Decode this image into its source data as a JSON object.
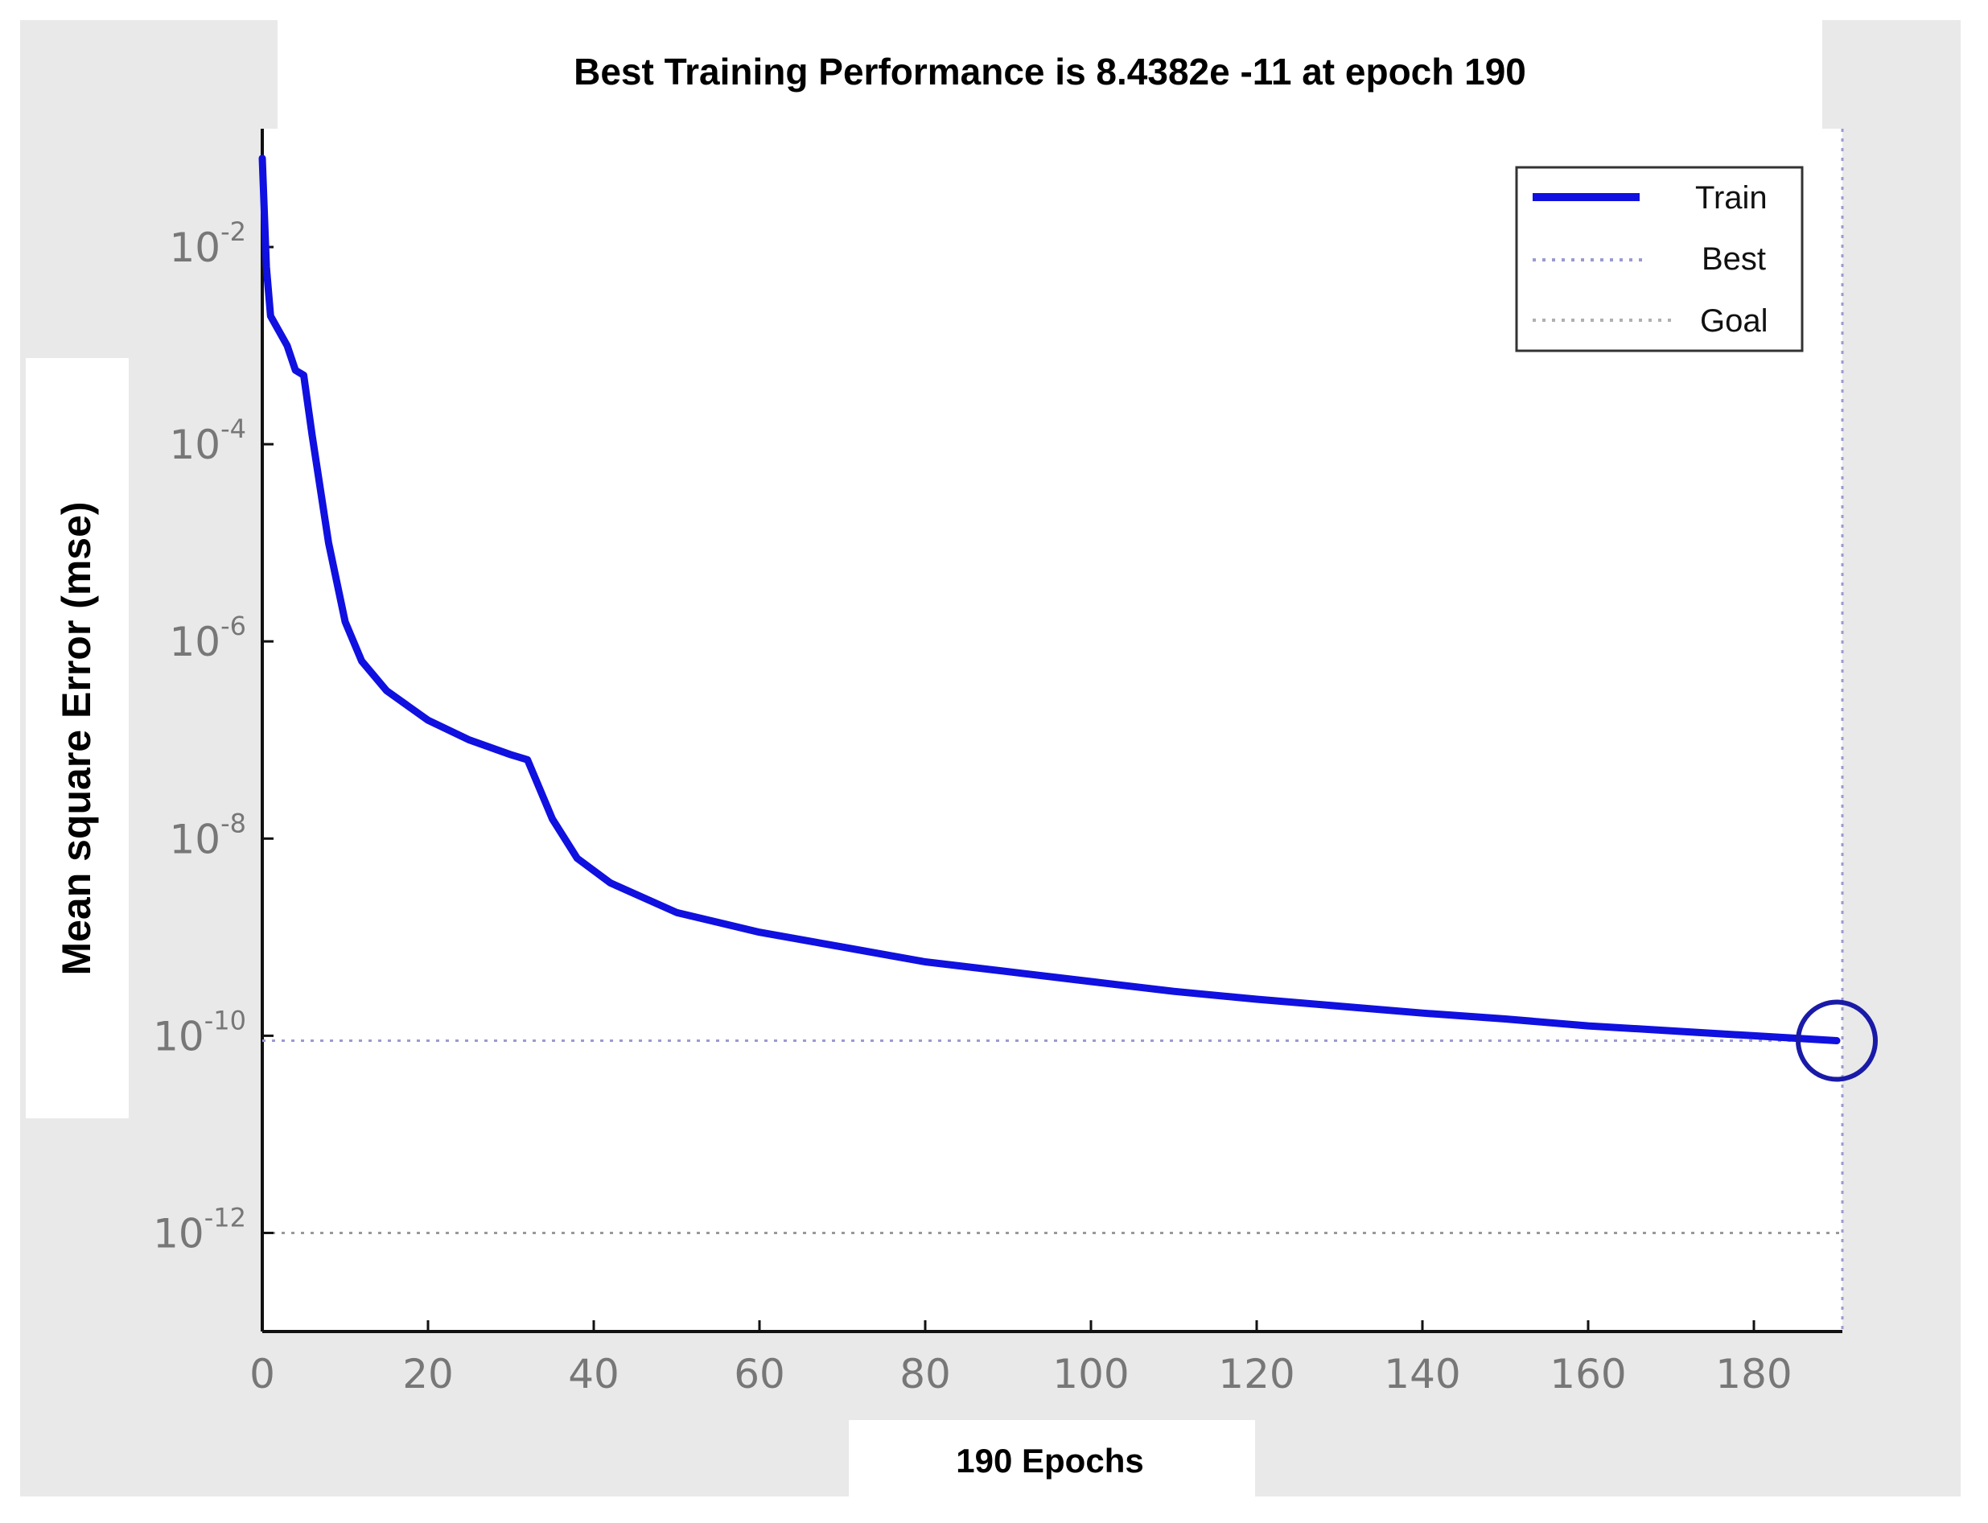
{
  "chart_data": {
    "type": "line",
    "title": "Best Training Performance is 8.4382e -11 at epoch 190",
    "xlabel": "190 Epochs",
    "ylabel": "Mean square Error (mse)",
    "xlim": [
      0,
      190
    ],
    "ylim_log10": [
      -13,
      -1
    ],
    "yscale": "log",
    "x_ticks": [
      0,
      20,
      40,
      60,
      80,
      100,
      120,
      140,
      160,
      180
    ],
    "x_tick_labels": [
      "0",
      "20",
      "40",
      "60",
      "80",
      "100",
      "120",
      "140",
      "160",
      "180"
    ],
    "y_ticks_log10": [
      -2,
      -4,
      -6,
      -8,
      -10,
      -12
    ],
    "y_tick_labels": [
      {
        "base": "10",
        "exp": "-2"
      },
      {
        "base": "10",
        "exp": "-4"
      },
      {
        "base": "10",
        "exp": "-6"
      },
      {
        "base": "10",
        "exp": "-8"
      },
      {
        "base": "10",
        "exp": "-10"
      },
      {
        "base": "10",
        "exp": "-12"
      }
    ],
    "legend": {
      "position": "top-right",
      "entries": [
        {
          "label": "Train",
          "style": "solid",
          "color": "#1010e0"
        },
        {
          "label": "Best",
          "style": "dotted",
          "color": "#9a9ad0"
        },
        {
          "label": "Goal",
          "style": "dotted",
          "color": "#b0b0b0"
        }
      ]
    },
    "series": [
      {
        "name": "Train",
        "color": "#1010e0",
        "x": [
          0,
          0.5,
          1,
          2,
          3,
          4,
          5,
          6,
          8,
          10,
          12,
          15,
          20,
          25,
          30,
          32,
          33,
          35,
          38,
          42,
          50,
          60,
          70,
          80,
          90,
          100,
          110,
          120,
          130,
          140,
          150,
          160,
          170,
          180,
          190
        ],
        "log10_mse": [
          -1.1,
          -2.2,
          -2.7,
          -2.85,
          -3.0,
          -3.25,
          -3.3,
          -3.9,
          -5.0,
          -5.8,
          -6.2,
          -6.5,
          -6.8,
          -7.0,
          -7.15,
          -7.2,
          -7.4,
          -7.8,
          -8.2,
          -8.45,
          -8.75,
          -8.95,
          -9.1,
          -9.25,
          -9.35,
          -9.45,
          -9.55,
          -9.63,
          -9.7,
          -9.77,
          -9.83,
          -9.9,
          -9.95,
          -10.0,
          -10.05
        ]
      }
    ],
    "best": {
      "epoch": 190,
      "log10_mse": -10.05,
      "label": "Best"
    },
    "goal": {
      "log10_mse": -12,
      "label": "Goal"
    }
  }
}
